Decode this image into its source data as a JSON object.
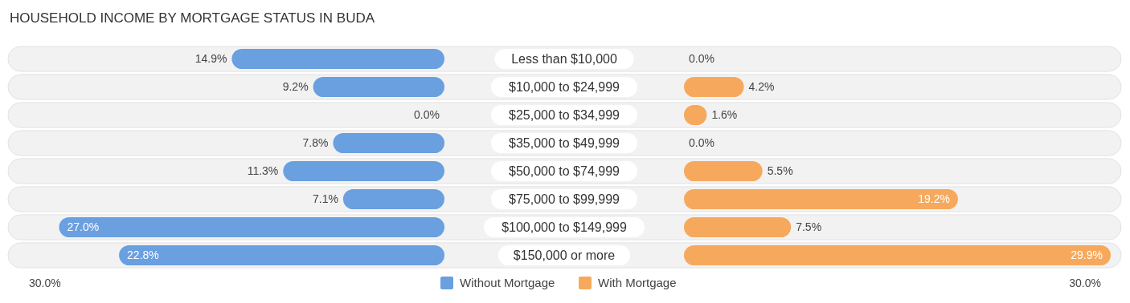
{
  "chart_data": [
    {
      "type": "bar",
      "orientation": "horizontal",
      "title": "HOUSEHOLD INCOME BY MORTGAGE STATUS IN BUDA",
      "categories": [
        "Less than $10,000",
        "$10,000 to $24,999",
        "$25,000 to $34,999",
        "$35,000 to $49,999",
        "$50,000 to $74,999",
        "$75,000 to $99,999",
        "$100,000 to $149,999",
        "$150,000 or more"
      ],
      "series": [
        {
          "name": "Without Mortgage",
          "color": "#6a9fe0",
          "values": [
            14.9,
            9.2,
            0.0,
            7.8,
            11.3,
            7.1,
            27.0,
            22.8
          ],
          "value_labels": [
            "14.9%",
            "9.2%",
            "0.0%",
            "7.8%",
            "11.3%",
            "7.1%",
            "27.0%",
            "22.8%"
          ]
        }
      ],
      "annotations": [
        "30.0%"
      ],
      "legend": "bottom"
    },
    {
      "type": "bar",
      "orientation": "horizontal",
      "categories": [
        null,
        null,
        null,
        null,
        null,
        null,
        null,
        null
      ],
      "series": [
        {
          "name": "With Mortgage",
          "color": "#f6a95c",
          "values": [
            0.0,
            4.2,
            1.6,
            0.0,
            5.5,
            19.2,
            7.5,
            29.9
          ],
          "value_labels": [
            "0.0%",
            "4.2%",
            "1.6%",
            "0.0%",
            "5.5%",
            "19.2%",
            "7.5%",
            "29.9%"
          ]
        }
      ],
      "annotations": [
        "30.0%"
      ],
      "legend": "bottom"
    }
  ]
}
